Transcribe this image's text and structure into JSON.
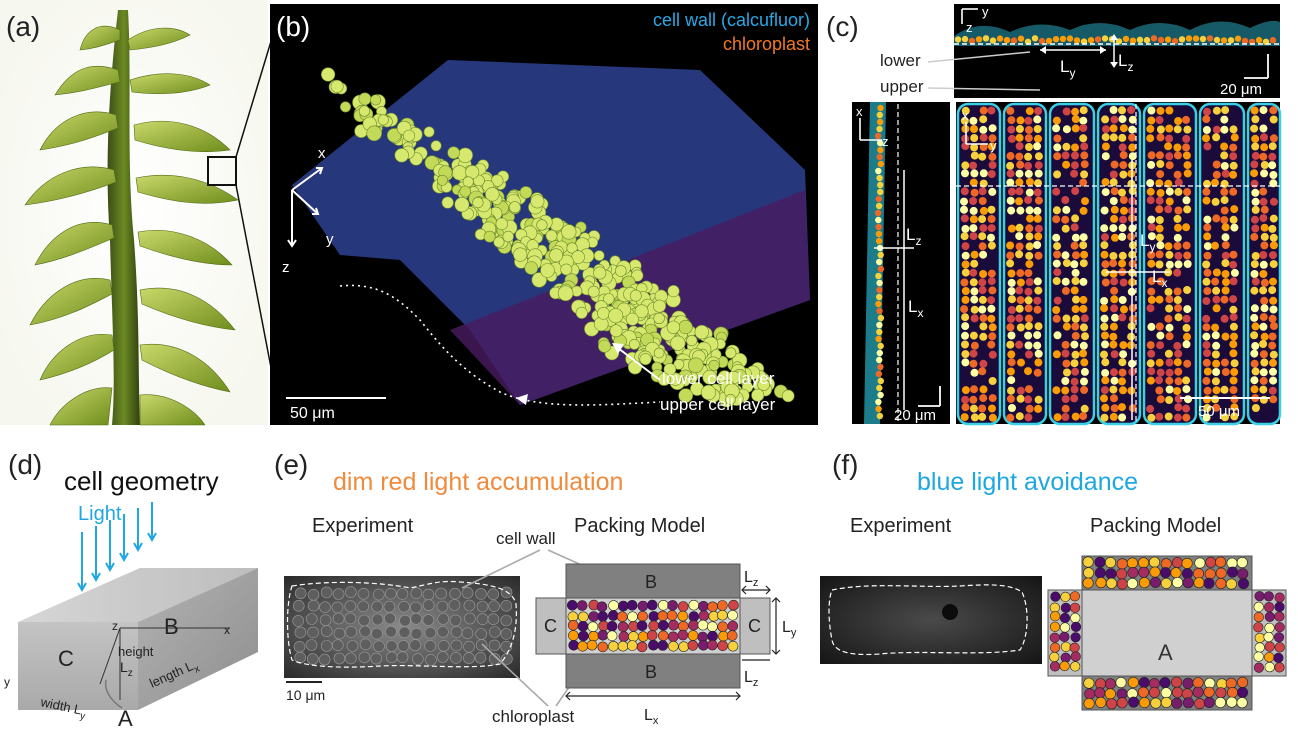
{
  "panels": {
    "a": {
      "label": "(a)"
    },
    "b": {
      "label": "(b)",
      "legend_cellwall": "cell wall (calcufluor)",
      "legend_chloroplast": "chloroplast",
      "axis_x": "x",
      "axis_y": "y",
      "axis_z": "z",
      "scalebar": "50 μm",
      "annot_lower": "lower cell layer",
      "annot_upper": "upper cell layer"
    },
    "c": {
      "label": "(c)",
      "lower": "lower",
      "upper": "upper",
      "top_y": "y",
      "top_z": "z",
      "Ly": "L",
      "Ly_sub": "y",
      "Lz": "L",
      "Lz_sub": "z",
      "Lx": "L",
      "Lx_sub": "x",
      "scale_top": "20 μm",
      "scale_left": "20 μm",
      "scale_right": "50 μm",
      "left_x": "x",
      "left_z": "z",
      "right_x": "x",
      "right_y": "y"
    },
    "d": {
      "label": "(d)",
      "title": "cell geometry",
      "light": "Light",
      "face_b": "B",
      "face_c": "C",
      "face_a": "A",
      "axis_x": "x",
      "axis_y": "y",
      "axis_z": "z",
      "height": "height",
      "height_L": "L",
      "height_sub": "z",
      "length": "length L",
      "length_sub": "x",
      "width": "width L",
      "width_sub": "y"
    },
    "e": {
      "label": "(e)",
      "title": "dim red light accumulation",
      "experiment": "Experiment",
      "model": "Packing Model",
      "cell_wall": "cell wall",
      "chloroplast": "chloroplast",
      "scalebar": "10 μm",
      "face_b_top": "B",
      "face_b_bottom": "B",
      "face_c_left": "C",
      "face_c_right": "C",
      "Lz": "L",
      "Lz_sub": "z",
      "Ly": "L",
      "Ly_sub": "y",
      "Lx": "L",
      "Lx_sub": "x"
    },
    "f": {
      "label": "(f)",
      "title": "blue light avoidance",
      "experiment": "Experiment",
      "model": "Packing Model",
      "face_a": "A"
    }
  },
  "colors": {
    "orange_title": "#f08a3c",
    "blue_title": "#1ea7e0",
    "wall_cyan": "#3ad0e6",
    "chloro_yellow": "#d9e86a",
    "model_gray_dark": "#808080",
    "model_gray_light": "#c8c8c8"
  }
}
